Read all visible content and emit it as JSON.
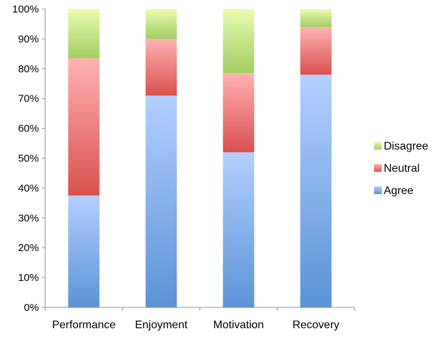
{
  "chart_data": {
    "type": "bar",
    "stacked": true,
    "normalized_percent": true,
    "categories": [
      "Performance",
      "Enjoyment",
      "Motivation",
      "Recovery"
    ],
    "series": [
      {
        "name": "Agree",
        "values": [
          37.5,
          71.0,
          52.0,
          78.0
        ],
        "color": "#5b93d6",
        "color_light": "#b3cfff"
      },
      {
        "name": "Neutral",
        "values": [
          46.0,
          19.0,
          26.5,
          16.0
        ],
        "color": "#d9504e",
        "color_light": "#ffb2b2"
      },
      {
        "name": "Disagree",
        "values": [
          16.5,
          10.0,
          21.5,
          6.0
        ],
        "color": "#a3cc63",
        "color_light": "#e8fcb0"
      }
    ],
    "legend_order": [
      "Disagree",
      "Neutral",
      "Agree"
    ],
    "legend_position": "right",
    "yaxis": {
      "min": 0,
      "max": 100,
      "tick_labels": [
        "0%",
        "10%",
        "20%",
        "30%",
        "40%",
        "50%",
        "60%",
        "70%",
        "80%",
        "90%",
        "100%"
      ]
    },
    "grid": false,
    "title": "",
    "xlabel": "",
    "ylabel": ""
  }
}
